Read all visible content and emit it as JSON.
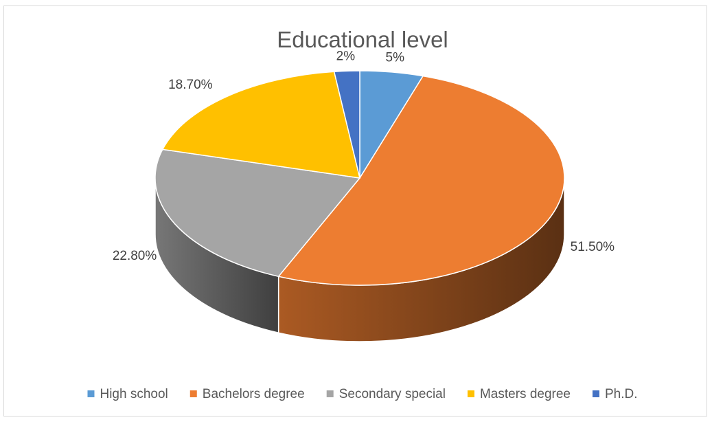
{
  "chart_data": {
    "type": "pie",
    "title": "Educational level",
    "categories": [
      "High school",
      "Bachelors degree",
      "Secondary special",
      "Masters degree",
      "Ph.D."
    ],
    "values": [
      5,
      51.5,
      22.8,
      18.7,
      2
    ],
    "data_labels": [
      "5%",
      "51.50%",
      "22.80%",
      "18.70%",
      "2%"
    ],
    "colors": [
      "#5B9BD5",
      "#ED7D31",
      "#A5A5A5",
      "#FFC000",
      "#4472C4"
    ],
    "style": "3d",
    "legend_position": "bottom"
  }
}
